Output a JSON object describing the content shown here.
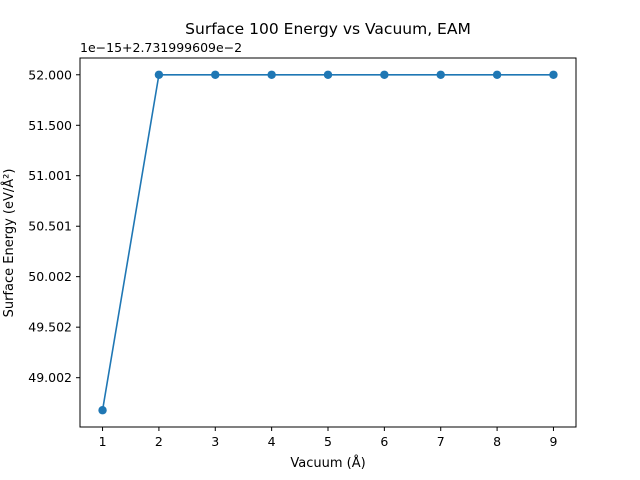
{
  "chart_data": {
    "type": "line",
    "title": "Surface 100 Energy vs Vacuum, EAM",
    "xlabel": "Vacuum (Å)",
    "ylabel": "Surface Energy (eV/Å²)",
    "y_offset_label": "1e−15+2.731999609e−2",
    "x": [
      1,
      2,
      3,
      4,
      5,
      6,
      7,
      8,
      9
    ],
    "series": [
      {
        "color": "#1f77b4",
        "marker": "circle",
        "values": [
          48.68,
          52.0,
          52.0,
          52.0,
          52.0,
          52.0,
          52.0,
          52.0,
          52.0
        ]
      }
    ],
    "xticks": [
      "1",
      "2",
      "3",
      "4",
      "5",
      "6",
      "7",
      "8",
      "9"
    ],
    "yticks": [
      {
        "value": 49.002,
        "label": "49.002"
      },
      {
        "value": 49.502,
        "label": "49.502"
      },
      {
        "value": 50.002,
        "label": "50.002"
      },
      {
        "value": 50.501,
        "label": "50.501"
      },
      {
        "value": 51.001,
        "label": "51.001"
      },
      {
        "value": 51.5,
        "label": "51.500"
      },
      {
        "value": 52.0,
        "label": "52.000"
      }
    ],
    "xlim": [
      0.6,
      9.4
    ],
    "ylim": [
      48.514,
      52.166
    ],
    "grid": false,
    "legend": "none"
  }
}
